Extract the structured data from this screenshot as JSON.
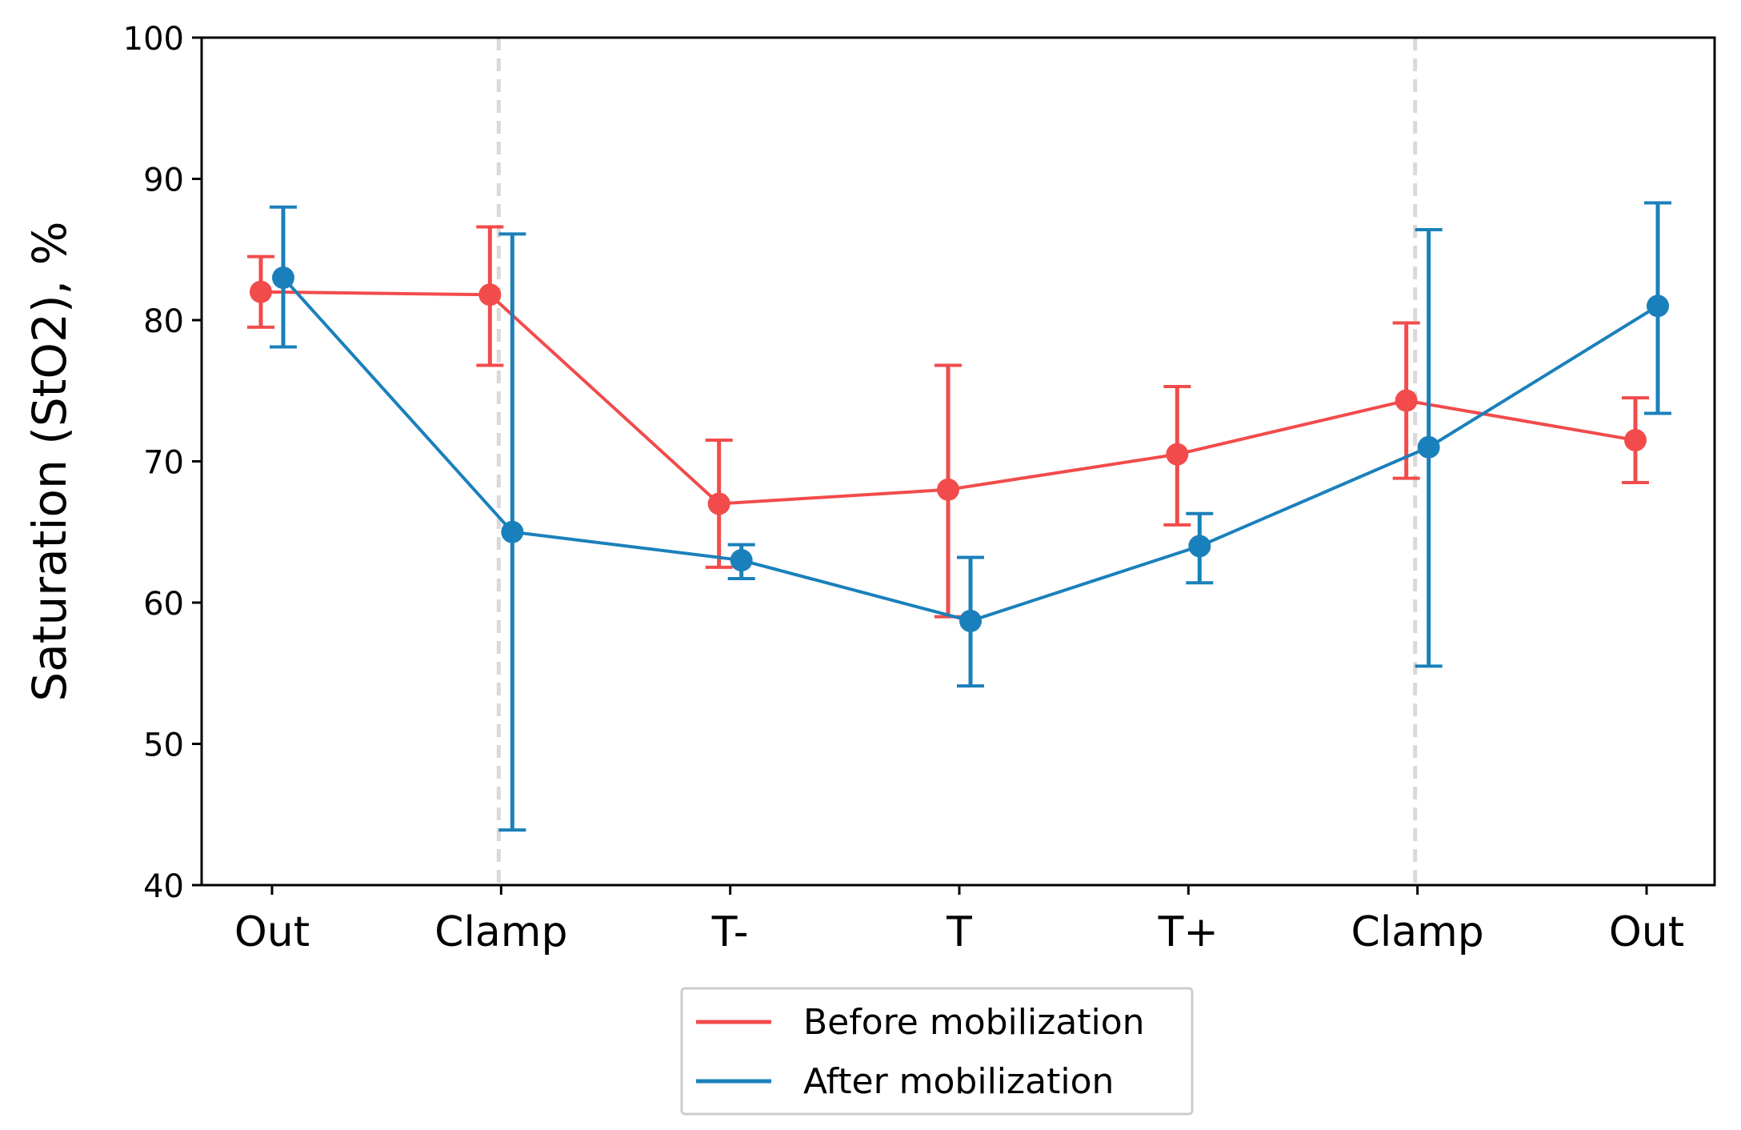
{
  "chart_data": {
    "type": "line",
    "title": "",
    "xlabel": "",
    "ylabel": "Saturation (StO2), %",
    "categories": [
      "Out",
      "Clamp",
      "T-",
      "T",
      "T+",
      "Clamp",
      "Out"
    ],
    "ylim": [
      40,
      100
    ],
    "yticks": [
      "40",
      "50",
      "60",
      "70",
      "80",
      "90",
      "100"
    ],
    "vlines_at_category_index": [
      1,
      5
    ],
    "legend_position": "below",
    "series": [
      {
        "name": "Before mobilization",
        "color": "#f24b4b",
        "values": [
          82.0,
          81.8,
          67.0,
          68.0,
          70.5,
          74.3,
          71.5
        ],
        "err_low": [
          79.5,
          76.8,
          62.5,
          59.0,
          65.5,
          68.8,
          68.5
        ],
        "err_high": [
          84.5,
          86.6,
          71.5,
          76.8,
          75.3,
          79.8,
          74.5
        ]
      },
      {
        "name": "After mobilization",
        "color": "#1a80bb",
        "values": [
          83.0,
          65.0,
          63.0,
          58.7,
          64.0,
          71.0,
          81.0
        ],
        "err_low": [
          78.1,
          43.9,
          61.7,
          54.1,
          61.4,
          55.5,
          73.4
        ],
        "err_high": [
          88.0,
          86.1,
          64.1,
          63.2,
          66.3,
          86.4,
          88.3
        ]
      }
    ]
  }
}
